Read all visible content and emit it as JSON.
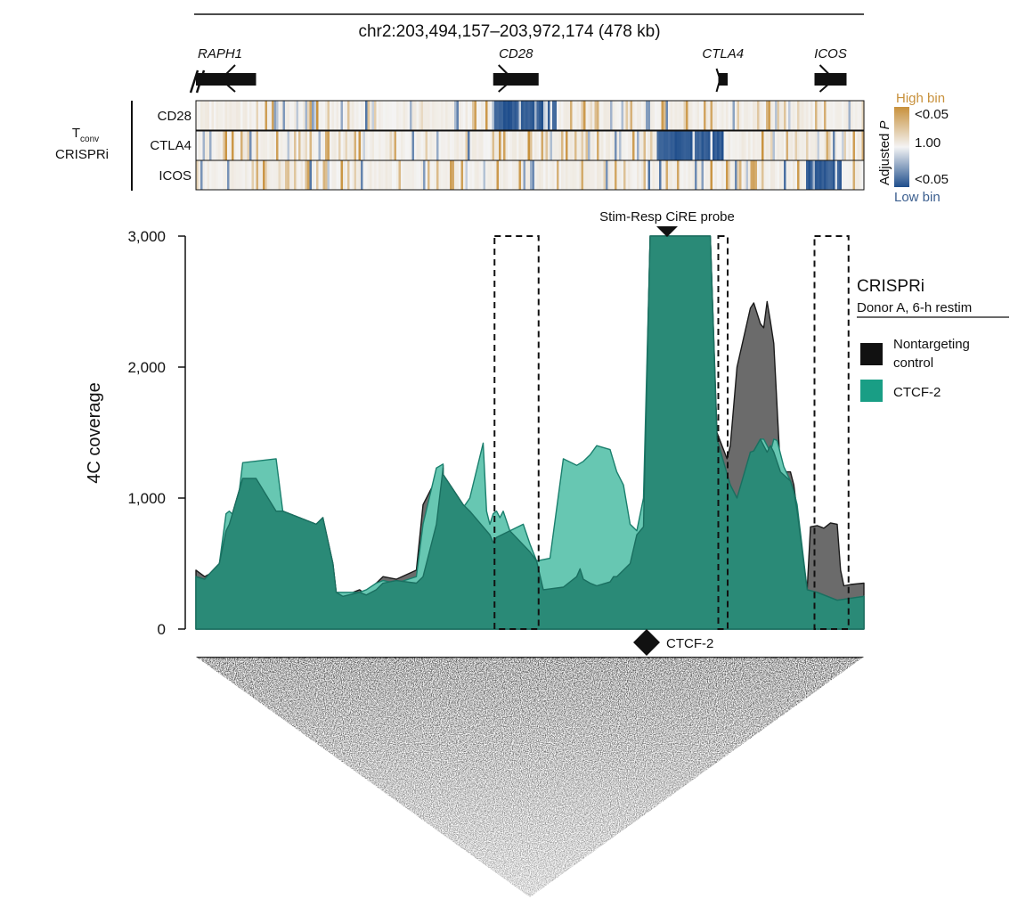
{
  "region": {
    "label": "chr2:203,494,157–203,972,174 (478 kb)"
  },
  "genes": [
    {
      "name": "RAPH1",
      "start": 0.0,
      "end": 0.09,
      "strand": "-"
    },
    {
      "name": "CD28",
      "start": 0.445,
      "end": 0.513,
      "strand": "+"
    },
    {
      "name": "CTLA4",
      "start": 0.782,
      "end": 0.796,
      "strand": "+"
    },
    {
      "name": "ICOS",
      "start": 0.926,
      "end": 0.974,
      "strand": "+"
    }
  ],
  "heatmap": {
    "group_label_1": "T",
    "group_label_sub": "conv",
    "group_label_2": "CRISPRi",
    "rows": [
      {
        "label": "CD28",
        "low_region": [
          0.445,
          0.54
        ],
        "seed": 11
      },
      {
        "label": "CTLA4",
        "low_region": [
          0.69,
          0.79
        ],
        "seed": 23
      },
      {
        "label": "ICOS",
        "low_region": [
          0.915,
          0.965
        ],
        "seed": 37
      }
    ],
    "colorbar": {
      "title": "Adjusted ",
      "title_italic": "P",
      "high_label": "High bin",
      "low_label": "Low bin",
      "tick_top": "<0.05",
      "tick_mid": "1.00",
      "tick_bottom": "<0.05",
      "high_color": "#c8913c",
      "mid_color": "#f4f4f4",
      "low_color": "#1f4e8c"
    }
  },
  "probe_label": "Stim-Resp CiRE probe",
  "ctcf_marker_label": "CTCF-2",
  "legend": {
    "title": "CRISPRi",
    "subtitle": "Donor A, 6-h restim",
    "items": [
      {
        "label_1": "Nontargeting",
        "label_2": "control",
        "color": "#111111"
      },
      {
        "label_1": "CTCF-2",
        "label_2": "",
        "color": "#199e85"
      }
    ]
  },
  "chart_data": {
    "type": "area",
    "ylabel": "4C coverage",
    "ylim": [
      0,
      3000
    ],
    "yticks": [
      0,
      1000,
      2000,
      3000
    ],
    "ytick_labels": [
      "0",
      "1,000",
      "2,000",
      "3,000"
    ],
    "x_description": "fraction of displayed region",
    "xlim": [
      0,
      1
    ],
    "highlight_boxes": [
      [
        0.447,
        0.513
      ],
      [
        0.782,
        0.796
      ],
      [
        0.926,
        0.977
      ]
    ],
    "series": [
      {
        "name": "Nontargeting control",
        "color": "#6b6b6b",
        "edge": "#1a1a1a",
        "x": [
          0.0,
          0.013,
          0.02,
          0.035,
          0.045,
          0.05,
          0.07,
          0.09,
          0.12,
          0.13,
          0.18,
          0.19,
          0.205,
          0.21,
          0.22,
          0.245,
          0.255,
          0.27,
          0.28,
          0.3,
          0.33,
          0.34,
          0.355,
          0.36,
          0.37,
          0.37,
          0.4,
          0.41,
          0.44,
          0.445,
          0.45,
          0.47,
          0.5,
          0.51,
          0.52,
          0.55,
          0.57,
          0.575,
          0.58,
          0.59,
          0.6,
          0.62,
          0.625,
          0.63,
          0.65,
          0.66,
          0.67,
          0.68,
          0.71,
          0.73,
          0.76,
          0.77,
          0.78,
          0.795,
          0.8,
          0.81,
          0.83,
          0.835,
          0.845,
          0.85,
          0.855,
          0.86,
          0.865,
          0.875,
          0.89,
          0.895,
          0.9,
          0.91,
          0.915,
          0.92,
          0.93,
          0.94,
          0.95,
          0.96,
          0.965,
          0.97,
          0.98,
          1.0
        ],
        "y": [
          450,
          400,
          420,
          500,
          750,
          800,
          1150,
          1150,
          900,
          900,
          800,
          850,
          500,
          280,
          250,
          300,
          260,
          350,
          400,
          380,
          450,
          950,
          1100,
          1150,
          1250,
          1180,
          950,
          900,
          720,
          660,
          700,
          750,
          590,
          520,
          300,
          320,
          400,
          460,
          380,
          350,
          330,
          360,
          1020,
          400,
          500,
          720,
          780,
          3000,
          3000,
          3000,
          3000,
          3000,
          1500,
          1300,
          1400,
          2000,
          2450,
          2490,
          2330,
          2300,
          2500,
          2350,
          2180,
          1200,
          1200,
          1100,
          900,
          450,
          300,
          780,
          790,
          770,
          810,
          800,
          450,
          330,
          340,
          350
        ]
      },
      {
        "name": "CTCF-2",
        "color": "#67c7b2",
        "edge": "#1a7f6d",
        "x": [
          0.0,
          0.013,
          0.02,
          0.035,
          0.045,
          0.05,
          0.06,
          0.07,
          0.12,
          0.13,
          0.18,
          0.19,
          0.2,
          0.205,
          0.21,
          0.22,
          0.245,
          0.255,
          0.27,
          0.28,
          0.3,
          0.33,
          0.34,
          0.36,
          0.37,
          0.37,
          0.39,
          0.41,
          0.43,
          0.435,
          0.44,
          0.445,
          0.45,
          0.455,
          0.46,
          0.47,
          0.49,
          0.5,
          0.51,
          0.53,
          0.55,
          0.57,
          0.58,
          0.59,
          0.6,
          0.62,
          0.63,
          0.64,
          0.65,
          0.66,
          0.67,
          0.68,
          0.71,
          0.73,
          0.76,
          0.77,
          0.78,
          0.785,
          0.8,
          0.81,
          0.815,
          0.83,
          0.835,
          0.845,
          0.85,
          0.855,
          0.86,
          0.865,
          0.87,
          0.88,
          0.89,
          0.895,
          0.9,
          0.915,
          0.93,
          0.96,
          1.0
        ],
        "y": [
          400,
          380,
          420,
          500,
          880,
          900,
          850,
          1270,
          1300,
          900,
          800,
          850,
          500,
          300,
          280,
          280,
          280,
          300,
          350,
          370,
          350,
          400,
          800,
          1230,
          1260,
          1050,
          850,
          1000,
          1420,
          900,
          800,
          880,
          900,
          850,
          900,
          750,
          800,
          650,
          520,
          540,
          1300,
          1250,
          1280,
          1330,
          1400,
          1370,
          1200,
          1100,
          800,
          750,
          1000,
          3000,
          3000,
          3000,
          3000,
          3000,
          1450,
          1220,
          1100,
          1000,
          1050,
          1350,
          1360,
          1450,
          1450,
          1400,
          1350,
          1450,
          1440,
          1240,
          1130,
          1050,
          950,
          300,
          280,
          220,
          250
        ]
      },
      {
        "name": "overlap",
        "color": "#2a8a77",
        "edge": "#1a6f60",
        "x": [
          0.0,
          0.013,
          0.02,
          0.035,
          0.045,
          0.05,
          0.07,
          0.09,
          0.12,
          0.13,
          0.18,
          0.19,
          0.205,
          0.21,
          0.22,
          0.245,
          0.255,
          0.27,
          0.28,
          0.3,
          0.33,
          0.34,
          0.36,
          0.37,
          0.37,
          0.4,
          0.41,
          0.44,
          0.445,
          0.45,
          0.47,
          0.5,
          0.51,
          0.52,
          0.55,
          0.57,
          0.575,
          0.58,
          0.59,
          0.6,
          0.62,
          0.625,
          0.63,
          0.65,
          0.66,
          0.67,
          0.68,
          0.71,
          0.73,
          0.76,
          0.77,
          0.78,
          0.8,
          0.81,
          0.83,
          0.835,
          0.845,
          0.85,
          0.855,
          0.86,
          0.865,
          0.875,
          0.89,
          0.895,
          0.9,
          0.915,
          0.93,
          0.96,
          1.0
        ],
        "y": [
          400,
          380,
          420,
          500,
          750,
          800,
          1150,
          1150,
          900,
          900,
          800,
          850,
          500,
          280,
          250,
          280,
          260,
          300,
          350,
          370,
          350,
          400,
          800,
          1230,
          1180,
          950,
          900,
          720,
          660,
          700,
          750,
          590,
          520,
          300,
          320,
          400,
          460,
          380,
          350,
          330,
          360,
          400,
          400,
          500,
          720,
          780,
          3000,
          3000,
          3000,
          3000,
          3000,
          1450,
          1100,
          1000,
          1350,
          1360,
          1450,
          1400,
          1350,
          1400,
          1350,
          1200,
          1130,
          1050,
          900,
          300,
          280,
          220,
          250
        ]
      }
    ]
  }
}
